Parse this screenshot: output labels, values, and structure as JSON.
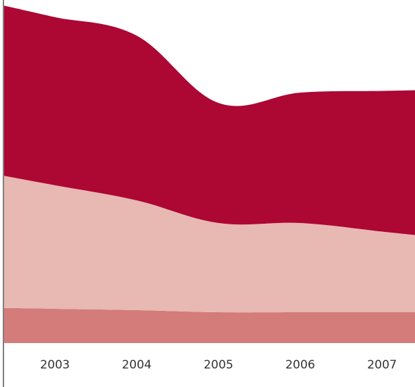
{
  "chart_data": {
    "type": "area",
    "stacked": true,
    "categories": [
      "2003",
      "2004",
      "2005",
      "2006",
      "2007"
    ],
    "x_axis_ticks": [
      "2003",
      "2004",
      "2005",
      "2006",
      "2007"
    ],
    "y_axis": {
      "visible": false,
      "ylim": [
        0,
        100
      ]
    },
    "grid": false,
    "legend": null,
    "series": [
      {
        "color": "#d47c7a",
        "values": [
          10,
          9.6,
          9,
          9,
          9
        ]
      },
      {
        "color": "#e8b8b2",
        "values": [
          36,
          32,
          26,
          26,
          23.5
        ]
      },
      {
        "color": "#ad0733",
        "values": [
          49,
          48,
          35,
          38,
          41
        ]
      }
    ],
    "colors": {
      "axis_line": "#555555",
      "tick_text": "#333333"
    }
  }
}
